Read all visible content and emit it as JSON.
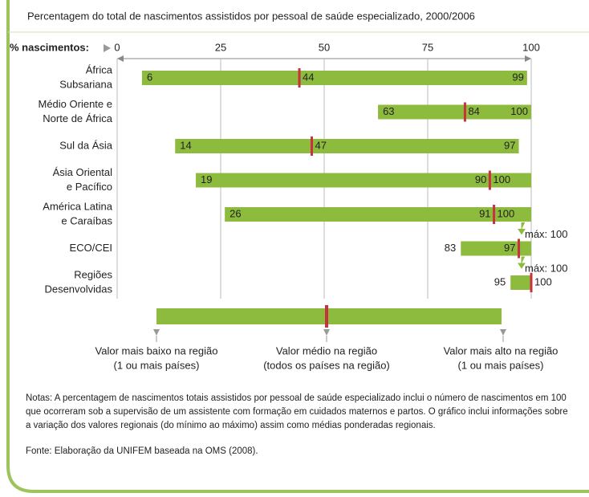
{
  "chart_data": {
    "type": "range",
    "title": "Percentagem do total de nascimentos assistidos por pessoal de saúde especializado, 2000/2006",
    "axis_label": "% nascimentos:",
    "xlim": [
      0,
      100
    ],
    "xticks": [
      0,
      25,
      50,
      75,
      100
    ],
    "grid": true,
    "categories": [
      [
        "África",
        "Subsariana"
      ],
      [
        "Médio Oriente e",
        "Norte de África"
      ],
      [
        "Sul da Ásia"
      ],
      [
        "Ásia Oriental",
        "e Pacífico"
      ],
      [
        "América Latina",
        "e Caraíbas"
      ],
      [
        "ECO/CEI"
      ],
      [
        "Regiões",
        "Desenvolvidas"
      ]
    ],
    "series": [
      {
        "name": "min",
        "color": "#8dbb3d",
        "values": [
          6,
          63,
          14,
          19,
          26,
          83,
          95
        ]
      },
      {
        "name": "mean",
        "color": "#c8313e",
        "values": [
          44,
          84,
          47,
          90,
          91,
          97,
          100
        ]
      },
      {
        "name": "max",
        "color": "#8dbb3d",
        "values": [
          99,
          100,
          97,
          100,
          100,
          100,
          100
        ],
        "value_labels": [
          "99",
          "100",
          "97",
          "100",
          "100",
          "máx: 100",
          "máx: 100"
        ]
      }
    ],
    "legend": {
      "low": [
        "Valor mais baixo na região",
        "(1 ou mais países)"
      ],
      "mean": [
        "Valor médio na região",
        "(todos os países na região)"
      ],
      "high": [
        "Valor mais alto na região",
        "(1 ou mais países)"
      ]
    },
    "notes": "Notas: A percentagem de nascimentos totais assistidos por pessoal de saúde especializado inclui o número de nascimentos em 100 que ocorreram sob a supervisão de um assistente com formação em cuidados maternos e partos. O gráfico inclui informações sobre a variação dos valores regionais (do mínimo ao máximo) assim como médias ponderadas regionais.",
    "source": "Fonte: Elaboração da UNIFEM baseada na OMS (2008)."
  }
}
